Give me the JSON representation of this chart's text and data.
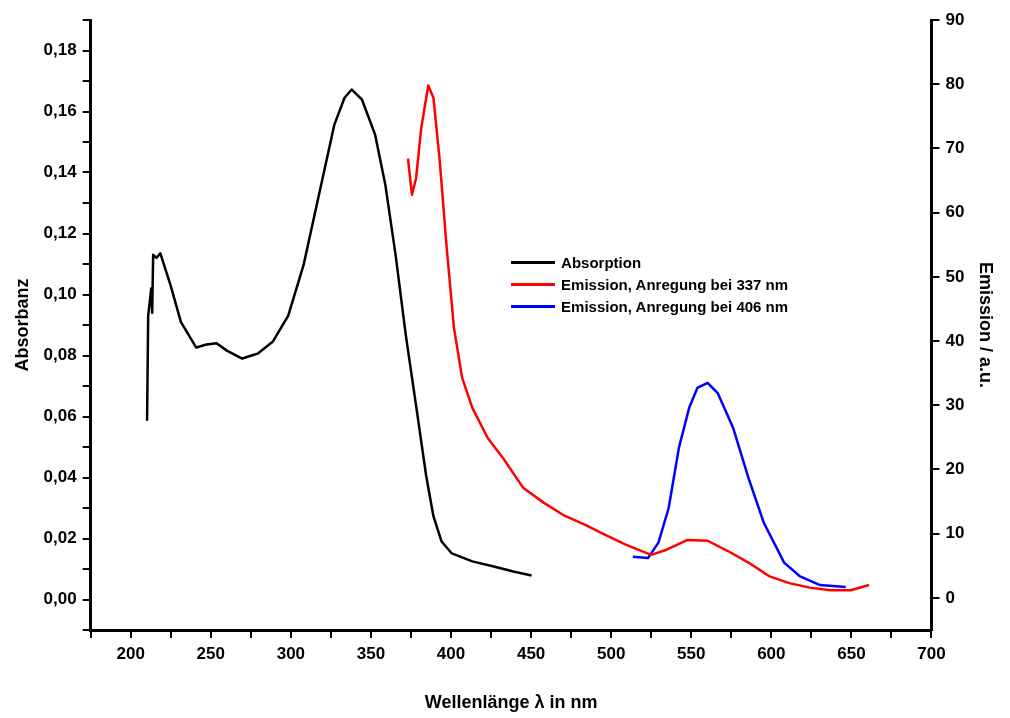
{
  "chart_data": {
    "type": "line",
    "xlabel": "Wellenlänge λ in nm",
    "ylabel": "Absorbanz",
    "y2label": "Emission / a.u.",
    "xlim": [
      175,
      700
    ],
    "xticks": [
      {
        "value": 175,
        "label": null
      },
      200,
      {
        "value": 225,
        "label": null
      },
      250,
      {
        "value": 275,
        "label": null
      },
      300,
      {
        "value": 325,
        "label": null
      },
      350,
      {
        "value": 375,
        "label": null
      },
      400,
      {
        "value": 425,
        "label": null
      },
      450,
      {
        "value": 475,
        "label": null
      },
      500,
      {
        "value": 525,
        "label": null
      },
      550,
      {
        "value": 575,
        "label": null
      },
      600,
      {
        "value": 625,
        "label": null
      },
      650,
      {
        "value": 675,
        "label": null
      },
      700
    ],
    "ylim": [
      -0.01,
      0.19
    ],
    "yticks": [
      {
        "value": -0.01,
        "label": null
      },
      {
        "value": 0,
        "label": "0,00"
      },
      {
        "value": 0.01,
        "label": null
      },
      {
        "value": 0.02,
        "label": "0,02"
      },
      {
        "value": 0.03,
        "label": null
      },
      {
        "value": 0.04,
        "label": "0,04"
      },
      {
        "value": 0.05,
        "label": null
      },
      {
        "value": 0.06,
        "label": "0,06"
      },
      {
        "value": 0.07,
        "label": null
      },
      {
        "value": 0.08,
        "label": "0,08"
      },
      {
        "value": 0.09,
        "label": null
      },
      {
        "value": 0.1,
        "label": "0,10"
      },
      {
        "value": 0.11,
        "label": null
      },
      {
        "value": 0.12,
        "label": "0,12"
      },
      {
        "value": 0.13,
        "label": null
      },
      {
        "value": 0.14,
        "label": "0,14"
      },
      {
        "value": 0.15,
        "label": null
      },
      {
        "value": 0.16,
        "label": "0,16"
      },
      {
        "value": 0.17,
        "label": null
      },
      {
        "value": 0.18,
        "label": "0,18"
      },
      {
        "value": 0.19,
        "label": null
      }
    ],
    "y2lim": [
      -5,
      90
    ],
    "y2ticks": [
      0,
      10,
      20,
      30,
      40,
      50,
      60,
      70,
      80,
      90
    ],
    "grid": false,
    "legend": "right",
    "line_style": "solid",
    "marker": "none",
    "series": [
      {
        "name": "Absorption",
        "color": "#000000",
        "x": [
          210.2,
          210.9,
          212.8,
          213.4,
          214,
          216,
          218.5,
          224.9,
          231.3,
          240.9,
          247.3,
          253.6,
          260,
          269.6,
          279.2,
          288.8,
          298.3,
          307.9,
          317.5,
          327.1,
          333.5,
          338,
          344.3,
          352.6,
          359,
          365.4,
          371.8,
          378.2,
          384.5,
          389,
          394.1,
          400.5,
          413.3,
          426,
          438.8,
          450.3
        ],
        "values": [
          0.0586,
          0.093,
          0.102,
          0.094,
          0.113,
          0.112,
          0.1135,
          0.103,
          0.091,
          0.0826,
          0.0836,
          0.084,
          0.0816,
          0.079,
          0.0806,
          0.0846,
          0.093,
          0.1096,
          0.1326,
          0.1556,
          0.1645,
          0.1672,
          0.164,
          0.1524,
          0.1359,
          0.1129,
          0.0865,
          0.0635,
          0.0405,
          0.0273,
          0.019,
          0.0151,
          0.0125,
          0.0109,
          0.0092,
          0.0079
        ]
      },
      {
        "name": "Emission, Anregung bei 337 nm",
        "color": "#ff0000",
        "axis": "y2",
        "x": [
          373.1,
          375.6,
          378.2,
          381.4,
          385.8,
          389,
          392.8,
          397.3,
          401.8,
          406.9,
          413.3,
          422.9,
          432.4,
          445.2,
          458,
          470.8,
          483.5,
          496.3,
          509.1,
          525,
          534.6,
          547.4,
          560.2,
          572.9,
          585.7,
          598.5,
          611.2,
          624,
          636.8,
          649.6,
          661
        ],
        "values": [
          68.4,
          62.8,
          65.4,
          73.2,
          79.8,
          77.9,
          68.5,
          54.5,
          42.1,
          34.3,
          29.6,
          24.9,
          21.8,
          17.1,
          14.8,
          12.8,
          11.4,
          9.8,
          8.3,
          6.7,
          7.5,
          9.0,
          8.9,
          7.3,
          5.5,
          3.4,
          2.3,
          1.6,
          1.2,
          1.2,
          2.0
        ]
      },
      {
        "name": "Emission, Anregung bei 406 nm",
        "color": "#0000ff",
        "axis": "y2",
        "x": [
          513.5,
          523,
          529.5,
          535.9,
          542.3,
          548.7,
          553.8,
          560.2,
          566.5,
          576.1,
          585.7,
          595.3,
          608,
          617.6,
          630.4,
          646.4
        ],
        "values": [
          6.4,
          6.2,
          8.6,
          14.0,
          23.4,
          29.6,
          32.7,
          33.5,
          31.9,
          26.5,
          18.7,
          11.7,
          5.5,
          3.4,
          2.0,
          1.7
        ]
      }
    ]
  }
}
